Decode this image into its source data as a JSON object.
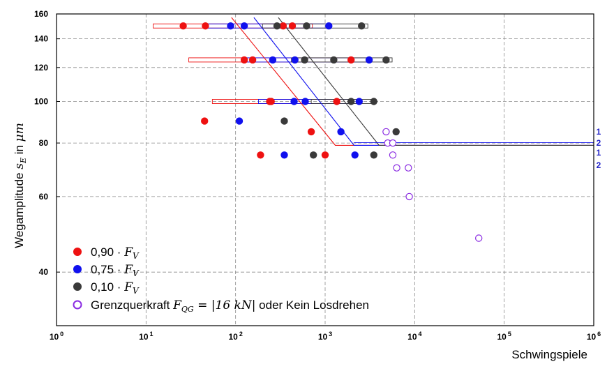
{
  "chart_data": {
    "type": "scatter",
    "xscale": "log",
    "yscale": "log",
    "xlim": [
      1,
      1000000
    ],
    "ylim": [
      30,
      160
    ],
    "xlabel": "Schwingspiele",
    "ylabel_text": "Wegamplitude ",
    "ylabel_math": "s",
    "ylabel_sub": "E",
    "ylabel_suffix": " in ",
    "ylabel_unit": "μm",
    "x_ticks": [
      {
        "value": 1,
        "base": "10",
        "exp": "0"
      },
      {
        "value": 10,
        "base": "10",
        "exp": "1"
      },
      {
        "value": 100,
        "base": "10",
        "exp": "2"
      },
      {
        "value": 1000,
        "base": "10",
        "exp": "3"
      },
      {
        "value": 10000,
        "base": "10",
        "exp": "4"
      },
      {
        "value": 100000,
        "base": "10",
        "exp": "5"
      },
      {
        "value": 1000000,
        "base": "10",
        "exp": "6"
      }
    ],
    "y_ticks": [
      {
        "value": 40,
        "label": "40"
      },
      {
        "value": 60,
        "label": "60"
      },
      {
        "value": 80,
        "label": "80"
      },
      {
        "value": 100,
        "label": "100"
      },
      {
        "value": 120,
        "label": "120"
      },
      {
        "value": 140,
        "label": "140"
      },
      {
        "value": 160,
        "label": "160"
      }
    ],
    "grid": true,
    "series": [
      {
        "name_text": "0,90 · ",
        "name_math": "F",
        "name_sub": "V",
        "color": "#ee1111",
        "marker": "filled",
        "points": [
          [
            26,
            150
          ],
          [
            46,
            150
          ],
          [
            340,
            150
          ],
          [
            430,
            150
          ],
          [
            125,
            125
          ],
          [
            155,
            125
          ],
          [
            1950,
            125
          ],
          [
            240,
            100
          ],
          [
            250,
            100
          ],
          [
            1350,
            100
          ],
          [
            45,
            90
          ],
          [
            700,
            85
          ],
          [
            190,
            75
          ],
          [
            1000,
            75
          ]
        ]
      },
      {
        "name_text": "0,75 · ",
        "name_math": "F",
        "name_sub": "V",
        "color": "#1010ee",
        "marker": "filled",
        "points": [
          [
            88,
            150
          ],
          [
            125,
            150
          ],
          [
            1100,
            150
          ],
          [
            260,
            125
          ],
          [
            460,
            125
          ],
          [
            3100,
            125
          ],
          [
            450,
            100
          ],
          [
            600,
            100
          ],
          [
            2400,
            100
          ],
          [
            110,
            90
          ],
          [
            1500,
            85
          ],
          [
            350,
            75
          ],
          [
            2150,
            75
          ]
        ]
      },
      {
        "name_text": "0,10 · ",
        "name_math": "F",
        "name_sub": "V",
        "color": "#3a3a3a",
        "marker": "filled",
        "points": [
          [
            290,
            150
          ],
          [
            620,
            150
          ],
          [
            2550,
            150
          ],
          [
            590,
            125
          ],
          [
            1250,
            125
          ],
          [
            4800,
            125
          ],
          [
            1950,
            100
          ],
          [
            3500,
            100
          ],
          [
            350,
            90
          ],
          [
            6200,
            85
          ],
          [
            740,
            75
          ],
          [
            3500,
            75
          ]
        ]
      },
      {
        "name_text": "Grenzquerkraft ",
        "name_math": "F",
        "name_sub": "QG",
        "name_math_tail": " = |16 kN|",
        "name_tail": " oder Kein Losdrehen",
        "color": "#8a2be2",
        "marker": "open",
        "points": [
          [
            4800,
            85
          ],
          [
            5000,
            80
          ],
          [
            5700,
            80
          ],
          [
            5700,
            75
          ],
          [
            6300,
            70
          ],
          [
            8500,
            70
          ],
          [
            8700,
            60
          ],
          [
            52000,
            48
          ]
        ]
      }
    ],
    "scatter_bands": [
      {
        "y": 150,
        "color": "#ee1111",
        "x": [
          12,
          720
        ]
      },
      {
        "y": 150,
        "color": "#1010ee",
        "x": [
          48,
          1150
        ]
      },
      {
        "y": 150,
        "color": "#3a3a3a",
        "x": [
          200,
          3000
        ]
      },
      {
        "y": 125,
        "color": "#ee1111",
        "x": [
          30,
          2000
        ]
      },
      {
        "y": 125,
        "color": "#1010ee",
        "x": [
          120,
          3200
        ]
      },
      {
        "y": 125,
        "color": "#3a3a3a",
        "x": [
          420,
          5600
        ]
      },
      {
        "y": 100,
        "color": "#ee1111",
        "x": [
          55,
          1400
        ]
      },
      {
        "y": 100,
        "color": "#1010ee",
        "x": [
          180,
          2500
        ]
      },
      {
        "y": 100,
        "color": "#3a3a3a",
        "x": [
          700,
          3600
        ]
      }
    ],
    "fit_lines": [
      {
        "color": "#ee1111",
        "points": [
          [
            90,
            157
          ],
          [
            1300,
            79
          ],
          [
            1000000,
            79
          ]
        ]
      },
      {
        "color": "#1010ee",
        "points": [
          [
            160,
            157
          ],
          [
            2100,
            79
          ],
          [
            1000000,
            79
          ]
        ]
      },
      {
        "color": "#3a3a3a",
        "points": [
          [
            300,
            157
          ],
          [
            4000,
            79
          ],
          [
            1000000,
            79
          ]
        ]
      }
    ],
    "endurance_line_color": "#1010ee",
    "right_labels": [
      {
        "y": 85,
        "text": "1"
      },
      {
        "y": 80,
        "text": "2"
      },
      {
        "y": 76,
        "text": "1"
      },
      {
        "y": 71,
        "text": "2"
      }
    ],
    "legend_position": "bottom-left"
  }
}
